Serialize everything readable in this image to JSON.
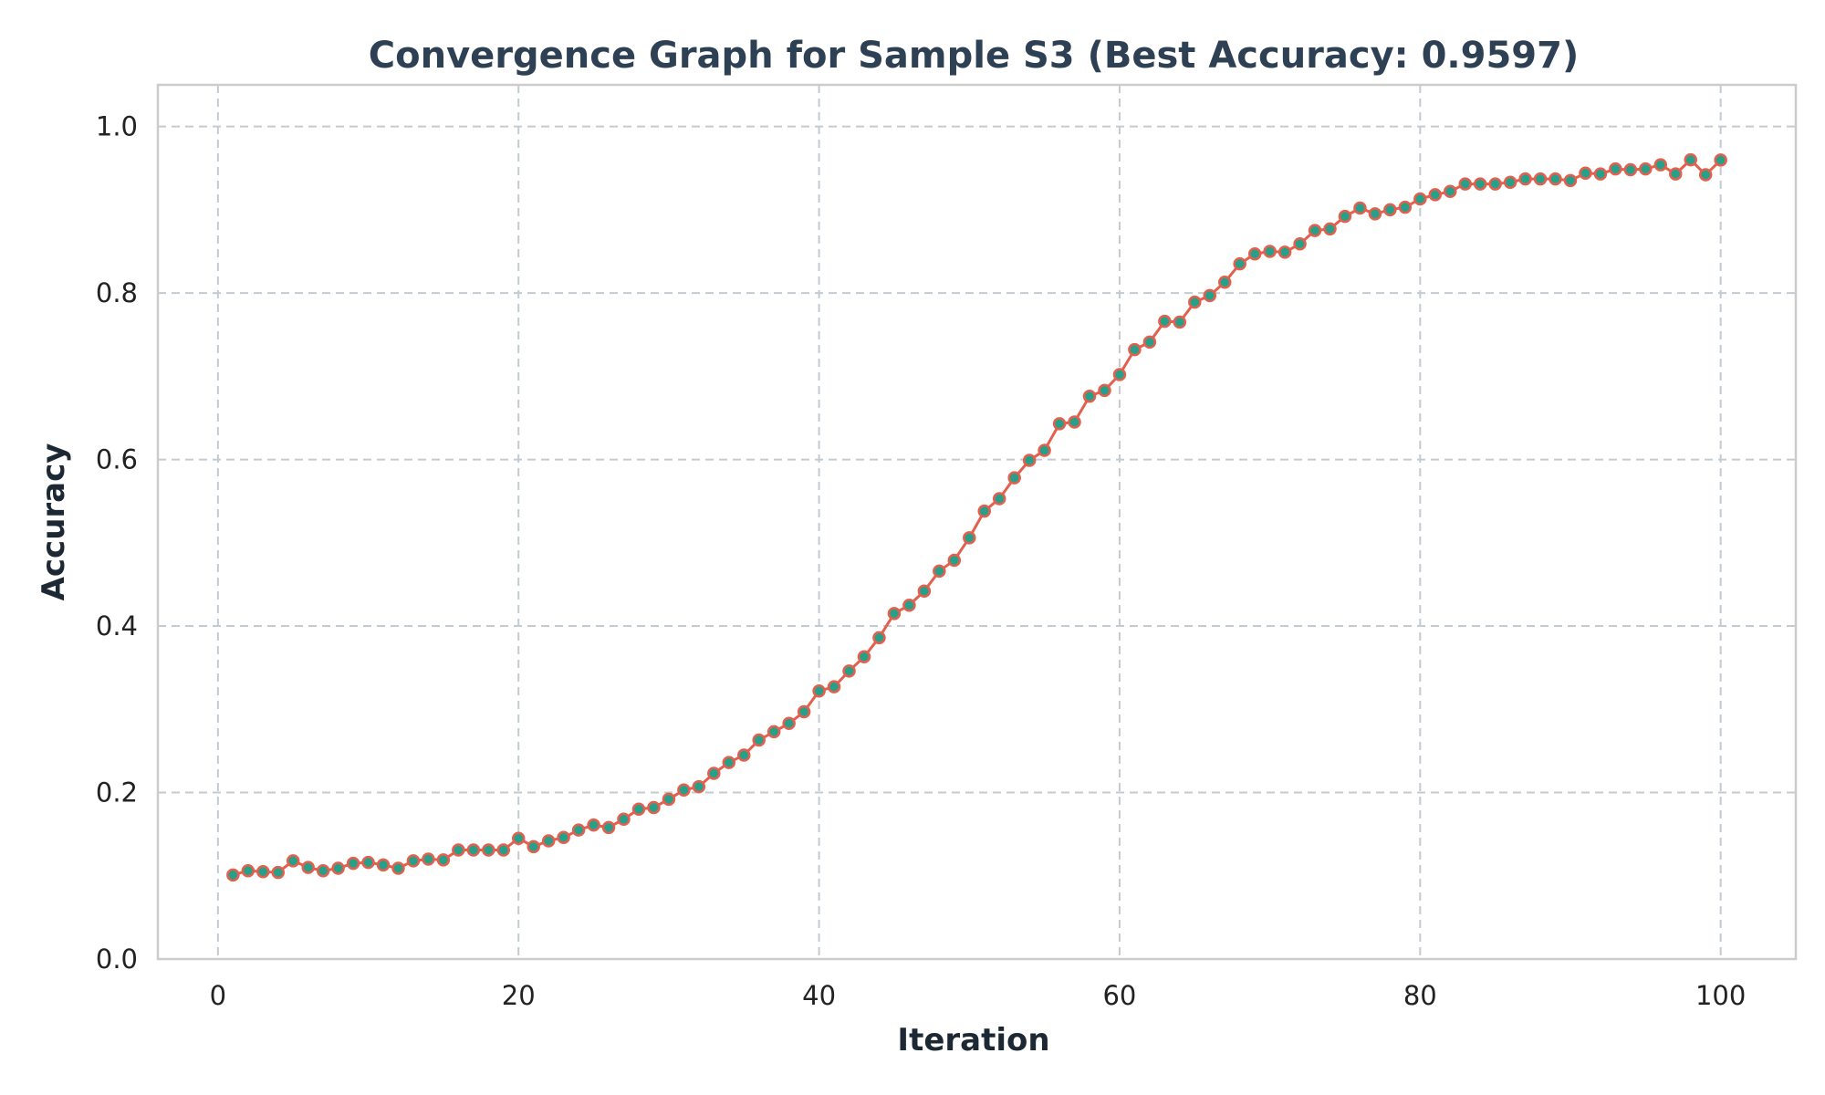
{
  "chart_data": {
    "type": "line",
    "title": "Convergence Graph for Sample S3 (Best Accuracy: 0.9597)",
    "xlabel": "Iteration",
    "ylabel": "Accuracy",
    "xlim": [
      -4,
      105
    ],
    "ylim": [
      0.0,
      1.05
    ],
    "x_ticks": [
      0,
      20,
      40,
      60,
      80,
      100
    ],
    "x_tick_labels": [
      "0",
      "20",
      "40",
      "60",
      "80",
      "100"
    ],
    "y_ticks": [
      0.0,
      0.2,
      0.4,
      0.6,
      0.8,
      1.0
    ],
    "y_tick_labels": [
      "0.0",
      "0.2",
      "0.4",
      "0.6",
      "0.8",
      "1.0"
    ],
    "grid": true,
    "colors": {
      "line": "#e4604e",
      "marker": "#27a08a",
      "title": "#2e4053",
      "grid": "#c3cbd1"
    },
    "series": [
      {
        "x": [
          1,
          2,
          3,
          4,
          5,
          6,
          7,
          8,
          9,
          10,
          11,
          12,
          13,
          14,
          15,
          16,
          17,
          18,
          19,
          20,
          21,
          22,
          23,
          24,
          25,
          26,
          27,
          28,
          29,
          30,
          31,
          32,
          33,
          34,
          35,
          36,
          37,
          38,
          39,
          40,
          41,
          42,
          43,
          44,
          45,
          46,
          47,
          48,
          49,
          50,
          51,
          52,
          53,
          54,
          55,
          56,
          57,
          58,
          59,
          60,
          61,
          62,
          63,
          64,
          65,
          66,
          67,
          68,
          69,
          70,
          71,
          72,
          73,
          74,
          75,
          76,
          77,
          78,
          79,
          80,
          81,
          82,
          83,
          84,
          85,
          86,
          87,
          88,
          89,
          90,
          91,
          92,
          93,
          94,
          95,
          96,
          97,
          98,
          99,
          100
        ],
        "values": [
          0.101,
          0.106,
          0.105,
          0.104,
          0.118,
          0.11,
          0.106,
          0.109,
          0.115,
          0.116,
          0.113,
          0.109,
          0.118,
          0.12,
          0.119,
          0.131,
          0.131,
          0.131,
          0.131,
          0.145,
          0.135,
          0.142,
          0.146,
          0.155,
          0.161,
          0.158,
          0.168,
          0.18,
          0.182,
          0.192,
          0.203,
          0.207,
          0.223,
          0.236,
          0.245,
          0.263,
          0.273,
          0.283,
          0.297,
          0.322,
          0.327,
          0.346,
          0.363,
          0.386,
          0.415,
          0.425,
          0.442,
          0.466,
          0.479,
          0.506,
          0.538,
          0.553,
          0.578,
          0.599,
          0.611,
          0.643,
          0.645,
          0.676,
          0.683,
          0.702,
          0.732,
          0.741,
          0.766,
          0.765,
          0.789,
          0.797,
          0.813,
          0.835,
          0.847,
          0.85,
          0.849,
          0.859,
          0.875,
          0.877,
          0.892,
          0.902,
          0.895,
          0.9,
          0.903,
          0.913,
          0.918,
          0.922,
          0.931,
          0.931,
          0.931,
          0.933,
          0.937,
          0.937,
          0.937,
          0.935,
          0.944,
          0.943,
          0.949,
          0.948,
          0.949,
          0.954,
          0.943,
          0.96,
          0.942,
          0.9597
        ]
      }
    ]
  }
}
